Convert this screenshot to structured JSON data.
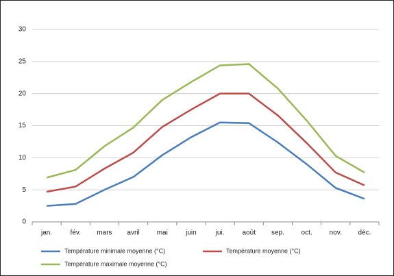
{
  "chart_data": {
    "type": "line",
    "categories": [
      "jan.",
      "fév.",
      "mars",
      "avril",
      "mai",
      "juin",
      "jui.",
      "août",
      "sep.",
      "oct.",
      "nov.",
      "déc."
    ],
    "series": [
      {
        "name": "Température minimale moyenne (°C)",
        "color": "#4a7ebb",
        "values": [
          2.5,
          2.8,
          5.0,
          7.0,
          10.4,
          13.2,
          15.5,
          15.4,
          12.4,
          9.0,
          5.3,
          3.6
        ]
      },
      {
        "name": "Température moyenne (°C)",
        "color": "#be4b48",
        "values": [
          4.7,
          5.5,
          8.3,
          10.8,
          14.8,
          17.5,
          20.0,
          20.0,
          16.6,
          12.3,
          7.7,
          5.7
        ]
      },
      {
        "name": "Température maximale moyenne (°C)",
        "color": "#98b954",
        "values": [
          6.9,
          8.1,
          11.8,
          14.7,
          19.0,
          21.8,
          24.4,
          24.6,
          20.8,
          15.8,
          10.3,
          7.7
        ]
      }
    ],
    "ylim": [
      0,
      30
    ],
    "yticks": [
      0,
      5,
      10,
      15,
      20,
      25,
      30
    ],
    "grid": true,
    "legend": "bottom"
  }
}
